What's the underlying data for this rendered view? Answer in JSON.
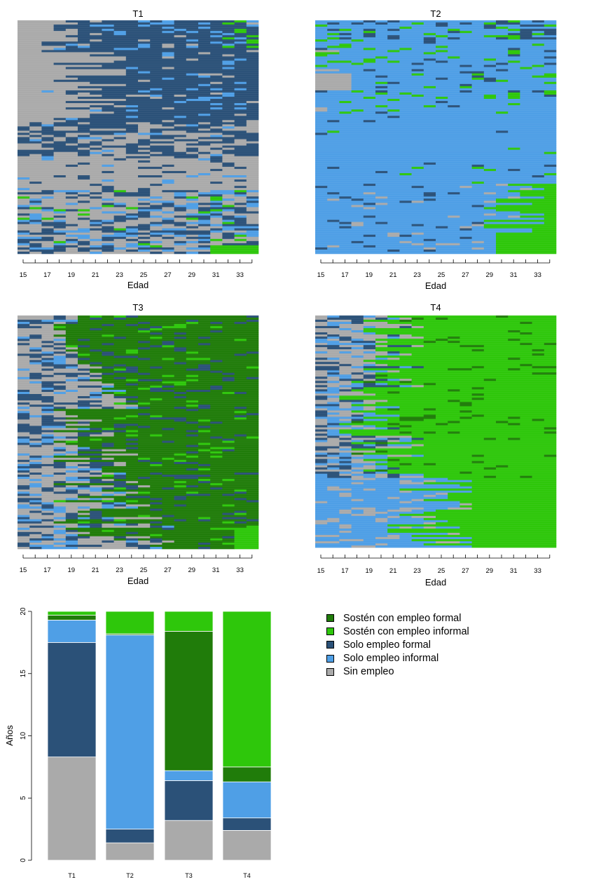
{
  "colors": {
    "sin_empleo": "#aaaaaa",
    "solo_informal": "#4f9fe6",
    "solo_formal": "#2b5178",
    "sosten_informal": "#2ec70b",
    "sosten_formal": "#207c0a"
  },
  "legend": [
    {
      "key": "sosten_formal",
      "label": "Sostén con empleo formal"
    },
    {
      "key": "sosten_informal",
      "label": "Sostén con empleo informal"
    },
    {
      "key": "solo_formal",
      "label": "Solo empleo formal"
    },
    {
      "key": "solo_informal",
      "label": "Solo empleo informal"
    },
    {
      "key": "sin_empleo",
      "label": "Sin empleo"
    }
  ],
  "chart_data": [
    {
      "type": "heatmap",
      "title": "T1",
      "xlabel": "Edad",
      "x_ticks": [
        15,
        16,
        17,
        18,
        19,
        20,
        21,
        22,
        23,
        24,
        25,
        26,
        27,
        28,
        29,
        30,
        31,
        32,
        33,
        34
      ],
      "x_tick_labels": [
        "15",
        "17",
        "19",
        "21",
        "23",
        "25",
        "27",
        "29",
        "31",
        "33"
      ],
      "x_range": [
        15,
        35
      ],
      "description": "Sequence index plot: each row is one individual's state trajectory by age"
    },
    {
      "type": "heatmap",
      "title": "T2",
      "xlabel": "Edad",
      "x_ticks": [
        15,
        16,
        17,
        18,
        19,
        20,
        21,
        22,
        23,
        24,
        25,
        26,
        27,
        28,
        29,
        30,
        31,
        32,
        33,
        34
      ],
      "x_tick_labels": [
        "15",
        "17",
        "19",
        "21",
        "23",
        "25",
        "27",
        "29",
        "31",
        "33"
      ],
      "x_range": [
        15,
        35
      ],
      "description": "Sequence index plot: each row is one individual's state trajectory by age"
    },
    {
      "type": "heatmap",
      "title": "T3",
      "xlabel": "Edad",
      "x_ticks": [
        15,
        16,
        17,
        18,
        19,
        20,
        21,
        22,
        23,
        24,
        25,
        26,
        27,
        28,
        29,
        30,
        31,
        32,
        33,
        34
      ],
      "x_tick_labels": [
        "15",
        "17",
        "19",
        "21",
        "23",
        "25",
        "27",
        "29",
        "31",
        "33"
      ],
      "x_range": [
        15,
        35
      ],
      "description": "Sequence index plot: each row is one individual's state trajectory by age"
    },
    {
      "type": "heatmap",
      "title": "T4",
      "xlabel": "Edad",
      "x_ticks": [
        15,
        16,
        17,
        18,
        19,
        20,
        21,
        22,
        23,
        24,
        25,
        26,
        27,
        28,
        29,
        30,
        31,
        32,
        33,
        34
      ],
      "x_tick_labels": [
        "15",
        "17",
        "19",
        "21",
        "23",
        "25",
        "27",
        "29",
        "31",
        "33"
      ],
      "x_range": [
        15,
        35
      ],
      "description": "Sequence index plot: each row is one individual's state trajectory by age"
    },
    {
      "type": "bar",
      "stacked": true,
      "categories": [
        "T1",
        "T2",
        "T3",
        "T4"
      ],
      "ylabel": "Años",
      "ylim": [
        0,
        20
      ],
      "y_ticks": [
        0,
        5,
        10,
        15,
        20
      ],
      "series": [
        {
          "name": "Sin empleo",
          "key": "sin_empleo",
          "values": [
            8.3,
            1.4,
            3.2,
            2.4
          ]
        },
        {
          "name": "Solo empleo formal",
          "key": "solo_formal",
          "values": [
            9.2,
            1.1,
            3.2,
            1.0
          ]
        },
        {
          "name": "Solo empleo informal",
          "key": "solo_informal",
          "values": [
            1.8,
            15.6,
            0.8,
            2.9
          ]
        },
        {
          "name": "Sostén con empleo formal",
          "key": "sosten_formal",
          "values": [
            0.4,
            0.1,
            11.2,
            1.2
          ]
        },
        {
          "name": "Sostén con empleo informal",
          "key": "sosten_informal",
          "values": [
            0.3,
            1.8,
            1.6,
            12.5
          ]
        }
      ]
    }
  ]
}
